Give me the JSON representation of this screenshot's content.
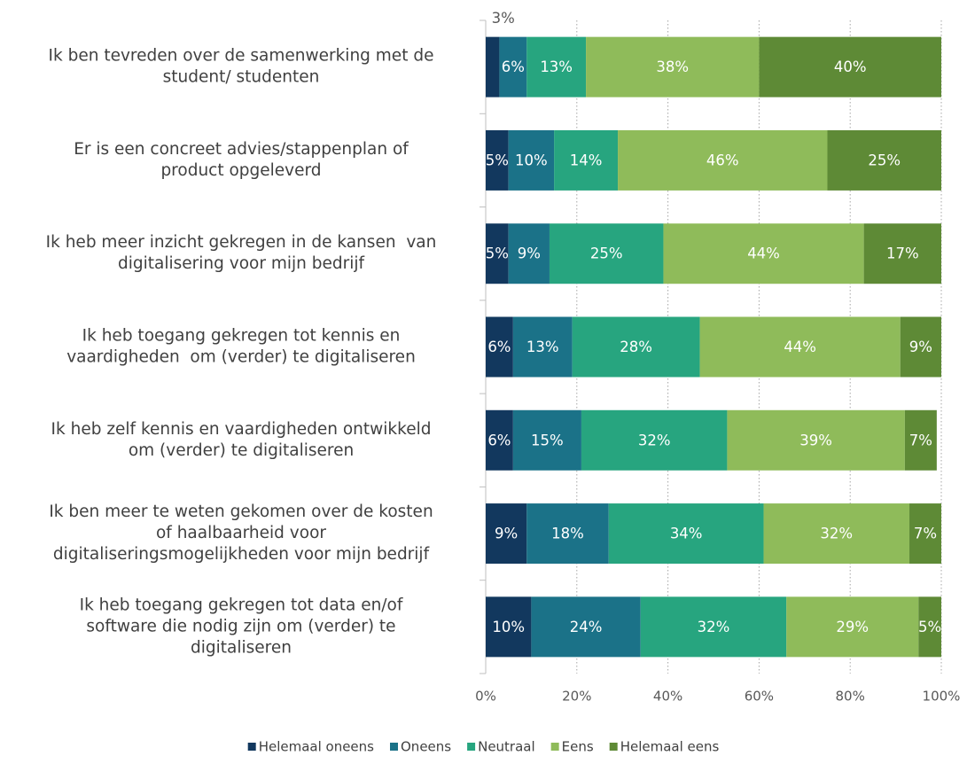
{
  "chart_data": {
    "type": "stacked_barh",
    "categories": [
      [
        "Ik ben tevreden over de samenwerking met de",
        "student/ studenten"
      ],
      [
        "Er is een concreet advies/stappenplan of",
        "product opgeleverd"
      ],
      [
        "Ik heb meer inzicht gekregen in de kansen  van",
        "digitalisering voor mijn bedrijf"
      ],
      [
        "Ik heb toegang gekregen tot kennis en",
        "vaardigheden  om (verder) te digitaliseren"
      ],
      [
        "Ik heb zelf kennis en vaardigheden ontwikkeld",
        "om (verder) te digitaliseren"
      ],
      [
        "Ik ben meer te weten gekomen over de kosten",
        "of haalbaarheid voor",
        "digitaliseringsmogelijkheden voor mijn bedrijf"
      ],
      [
        "Ik heb toegang gekregen tot data en/of",
        "software die nodig zijn om (verder) te",
        "digitaliseren"
      ]
    ],
    "series": [
      {
        "name": "Helemaal oneens",
        "color": "#12385e",
        "values": [
          3,
          5,
          5,
          6,
          6,
          9,
          10
        ],
        "value_labels": [
          "3%",
          "5%",
          "5%",
          "6%",
          "6%",
          "9%",
          "10%"
        ]
      },
      {
        "name": "Oneens",
        "color": "#1b7288",
        "values": [
          6,
          10,
          9,
          13,
          15,
          18,
          24
        ],
        "value_labels": [
          "6%",
          "10%",
          "9%",
          "13%",
          "15%",
          "18%",
          "24%"
        ]
      },
      {
        "name": "Neutraal",
        "color": "#27a57f",
        "values": [
          13,
          14,
          25,
          28,
          32,
          34,
          32
        ],
        "value_labels": [
          "13%",
          "14%",
          "25%",
          "28%",
          "32%",
          "34%",
          "32%"
        ]
      },
      {
        "name": "Eens",
        "color": "#8fbb5a",
        "values": [
          38,
          46,
          44,
          44,
          39,
          32,
          29
        ],
        "value_labels": [
          "38%",
          "46%",
          "44%",
          "44%",
          "39%",
          "32%",
          "29%"
        ]
      },
      {
        "name": "Helemaal eens",
        "color": "#5e8a36",
        "values": [
          40,
          25,
          17,
          9,
          7,
          7,
          5
        ],
        "value_labels": [
          "40%",
          "25%",
          "17%",
          "9%",
          "7%",
          "7%",
          "5%"
        ]
      }
    ],
    "xlim": [
      0,
      100
    ],
    "xticks": [
      {
        "value": 0,
        "label": "0%"
      },
      {
        "value": 20,
        "label": "20%"
      },
      {
        "value": 40,
        "label": "40%"
      },
      {
        "value": 60,
        "label": "60%"
      },
      {
        "value": 80,
        "label": "80%"
      },
      {
        "value": 100,
        "label": "100%"
      }
    ],
    "grid": true,
    "legend": "bottom"
  }
}
